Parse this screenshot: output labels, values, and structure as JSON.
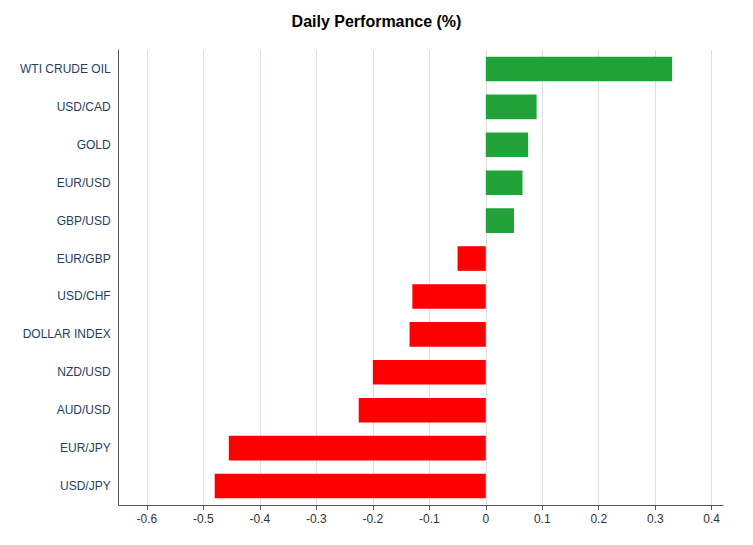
{
  "chart_data": {
    "type": "bar",
    "orientation": "horizontal",
    "title": "Daily Performance (%)",
    "categories": [
      "WTI CRUDE OIL",
      "USD/CAD",
      "GOLD",
      "EUR/USD",
      "GBP/USD",
      "EUR/GBP",
      "USD/CHF",
      "DOLLAR INDEX",
      "NZD/USD",
      "AUD/USD",
      "EUR/JPY",
      "USD/JPY"
    ],
    "values": [
      0.33,
      0.09,
      0.075,
      0.065,
      0.05,
      -0.05,
      -0.13,
      -0.135,
      -0.2,
      -0.225,
      -0.455,
      -0.48
    ],
    "colors": [
      "#21a339",
      "#21a339",
      "#21a339",
      "#21a339",
      "#21a339",
      "#ff0000",
      "#ff0000",
      "#ff0000",
      "#ff0000",
      "#ff0000",
      "#ff0000",
      "#ff0000"
    ],
    "xlim": [
      -0.65,
      0.42
    ],
    "xticks": [
      -0.6,
      -0.5,
      -0.4,
      -0.3,
      -0.2,
      -0.1,
      0,
      0.1,
      0.2,
      0.3,
      0.4
    ],
    "grid": true
  }
}
